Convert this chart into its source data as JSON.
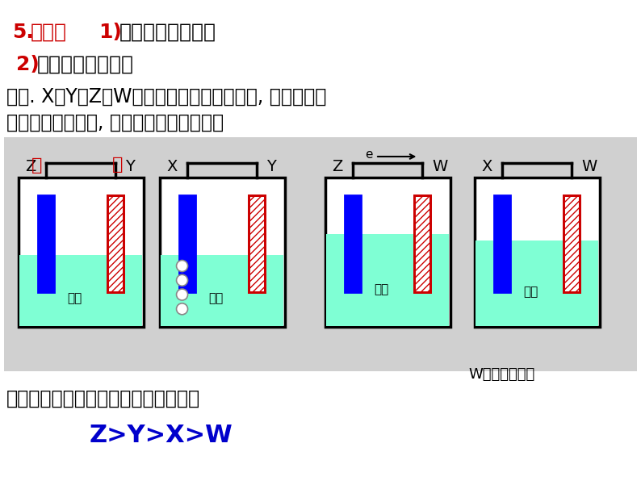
{
  "title_line1_red": "5.",
  "title_line1_red_text": "应用：",
  "title_line1_bold": "1)",
  "title_line1_rest": "加快化学反应速率",
  "title_line2_bold": "2)",
  "title_line2_rest": "比较金属活动性，",
  "exercise_line1": "练习. X、Y、Z、W四种金属片进入稀盐酸中, 用导线连接",
  "exercise_line2": "，可以组成原电池, 实验结果如下图所示：",
  "conclusion_line": "则四种金属的活泼性由强到弱的顺序为",
  "conclusion_answer": "Z>Y>X>W",
  "bg_color": "#ffffff",
  "diagram_bg": "#d8d8d8",
  "liquid_color": "#7fffd4",
  "blue_electrode": "#0000ff",
  "red_electrode": "#cc0000",
  "wire_color": "#000000",
  "text_red": "#cc0000",
  "text_black": "#000000",
  "answer_color": "#0000cc"
}
